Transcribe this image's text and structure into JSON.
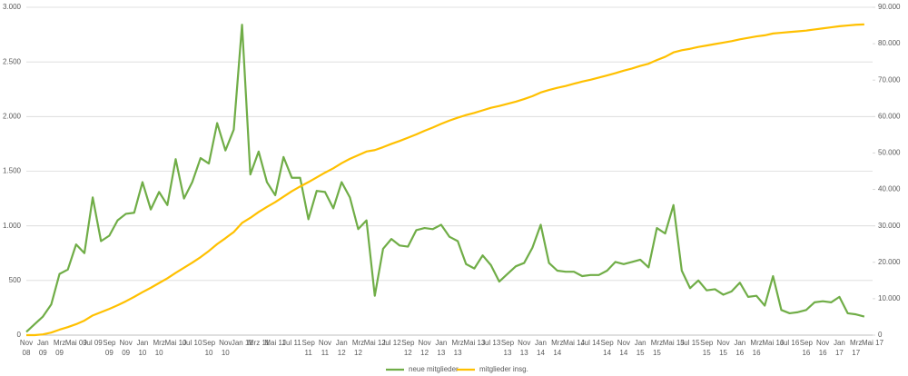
{
  "chart_data": {
    "type": "line",
    "categories": [
      "Nov 08",
      null,
      "Jan 09",
      null,
      "Mrz 09",
      null,
      "Mai 09",
      null,
      "Jul 09",
      null,
      "Sep 09",
      null,
      "Nov 09",
      null,
      "Jan 10",
      null,
      "Mrz 10",
      null,
      "Mai 10",
      null,
      "Jul 10",
      null,
      "Sep 10",
      null,
      "Nov 10",
      null,
      "Jan 11",
      null,
      "Mrz 11",
      null,
      "Mai 11",
      null,
      "Jul 11",
      null,
      "Sep 11",
      null,
      "Nov 11",
      null,
      "Jan 12",
      null,
      "Mrz 12",
      null,
      "Mai 12",
      null,
      "Jul 12",
      null,
      "Sep 12",
      null,
      "Nov 12",
      null,
      "Jan 13",
      null,
      "Mrz 13",
      null,
      "Mai 13",
      null,
      "Jul 13",
      null,
      "Sep 13",
      null,
      "Nov 13",
      null,
      "Jan 14",
      null,
      "Mrz 14",
      null,
      "Mai 14",
      null,
      "Jul 14",
      null,
      "Sep 14",
      null,
      "Nov 14",
      null,
      "Jan 15",
      null,
      "Mrz 15",
      null,
      "Mai 15",
      null,
      "Jul 15",
      null,
      "Sep 15",
      null,
      "Nov 15",
      null,
      "Jan 16",
      null,
      "Mrz 16",
      null,
      "Mai 16",
      null,
      "Jul 16",
      null,
      "Sep 16",
      null,
      "Nov 16",
      null,
      "Jan 17",
      null,
      "Mrz 17",
      null,
      "Mai 17"
    ],
    "series": [
      {
        "name": "neue mitglieder",
        "color": "#70ad47",
        "axis": "y",
        "values": [
          30,
          100,
          170,
          280,
          560,
          600,
          830,
          750,
          1260,
          860,
          910,
          1050,
          1110,
          1120,
          1400,
          1150,
          1310,
          1190,
          1610,
          1250,
          1400,
          1620,
          1570,
          1940,
          1690,
          1880,
          2840,
          1470,
          1680,
          1400,
          1280,
          1630,
          1440,
          1440,
          1060,
          1320,
          1310,
          1160,
          1400,
          1260,
          970,
          1050,
          360,
          790,
          880,
          820,
          810,
          960,
          980,
          970,
          1010,
          900,
          860,
          650,
          610,
          730,
          640,
          490,
          560,
          630,
          660,
          800,
          1010,
          660,
          590,
          580,
          580,
          540,
          550,
          550,
          590,
          670,
          650,
          670,
          690,
          620,
          980,
          930,
          1190,
          590,
          430,
          500,
          410,
          420,
          370,
          400,
          480,
          350,
          360,
          270,
          540,
          230,
          200,
          210,
          230,
          300,
          310,
          300,
          350,
          200,
          190,
          170,
          null
        ]
      },
      {
        "name": "mitglieder insg.",
        "color": "#ffc000",
        "axis": "y2",
        "values": [
          0,
          0,
          200,
          700,
          1500,
          2200,
          3000,
          4000,
          5400,
          6300,
          7200,
          8200,
          9300,
          10500,
          11800,
          13000,
          14300,
          15600,
          17100,
          18500,
          19900,
          21400,
          23100,
          25000,
          26600,
          28300,
          30800,
          32200,
          33800,
          35200,
          36500,
          38000,
          39500,
          40800,
          42000,
          43300,
          44600,
          45800,
          47200,
          48400,
          49400,
          50400,
          50800,
          51600,
          52500,
          53300,
          54200,
          55100,
          56100,
          57000,
          58000,
          58900,
          59700,
          60400,
          61000,
          61700,
          62400,
          62900,
          63500,
          64100,
          64800,
          65600,
          66600,
          67300,
          67900,
          68400,
          69000,
          69600,
          70100,
          70700,
          71300,
          71900,
          72600,
          73200,
          73900,
          74500,
          75500,
          76400,
          77600,
          78200,
          78600,
          79100,
          79500,
          79900,
          80300,
          80700,
          81200,
          81600,
          82000,
          82300,
          82800,
          83000,
          83200,
          83400,
          83600,
          83900,
          84200,
          84500,
          84800,
          85000,
          85200,
          85300,
          null
        ]
      }
    ],
    "ylim": [
      0,
      3000
    ],
    "yticks": [
      0,
      500,
      {
        "value": 1000,
        "label": "1.000"
      },
      {
        "value": 1500,
        "label": "1.500"
      },
      {
        "value": 2000,
        "label": "2.000"
      },
      {
        "value": 2500,
        "label": "2.500"
      },
      {
        "value": 3000,
        "label": "3.000"
      }
    ],
    "y2lim": [
      0,
      90000
    ],
    "y2ticks": [
      0,
      {
        "value": 10000,
        "label": "10.000"
      },
      {
        "value": 20000,
        "label": "20.000"
      },
      {
        "value": 30000,
        "label": "30.000"
      },
      {
        "value": 40000,
        "label": "40.000"
      },
      {
        "value": 50000,
        "label": "50.000"
      },
      {
        "value": 60000,
        "label": "60.000"
      },
      {
        "value": 70000,
        "label": "70.000"
      },
      {
        "value": 80000,
        "label": "80.000"
      },
      {
        "value": 90000,
        "label": "90.000"
      }
    ],
    "grid": true,
    "legend": "bottom"
  }
}
